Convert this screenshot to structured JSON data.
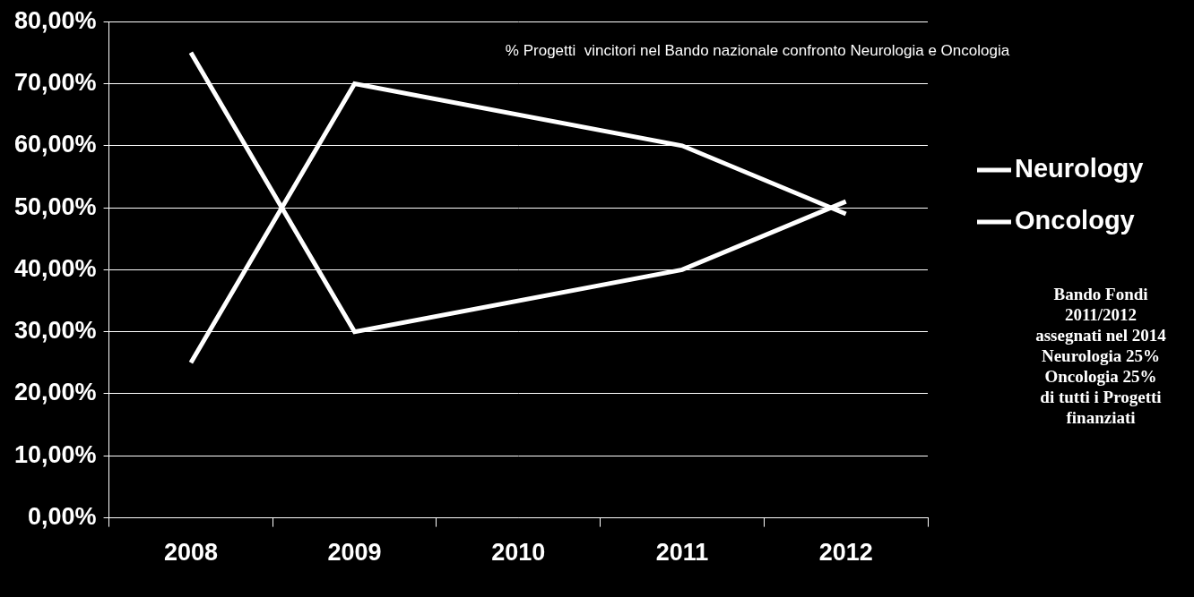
{
  "chart_data": {
    "type": "line",
    "title": "% Progetti  vincitori nel Bando nazionale confronto Neurologia e Oncologia",
    "categories": [
      "2008",
      "2009",
      "2010",
      "2011",
      "2012"
    ],
    "series": [
      {
        "name": "Neurology",
        "color": "#ffffff",
        "values": [
          75,
          30,
          null,
          40,
          51
        ]
      },
      {
        "name": "Oncology",
        "color": "#ffffff",
        "values": [
          25,
          70,
          null,
          60,
          49
        ]
      }
    ],
    "ylim": [
      0,
      80
    ],
    "yticks": [
      {
        "value": 0,
        "label": "0,00%"
      },
      {
        "value": 10,
        "label": "10,00%"
      },
      {
        "value": 20,
        "label": "20,00%"
      },
      {
        "value": 30,
        "label": "30,00%"
      },
      {
        "value": 40,
        "label": "40,00%"
      },
      {
        "value": 50,
        "label": "50,00%"
      },
      {
        "value": 60,
        "label": "60,00%"
      },
      {
        "value": 70,
        "label": "70,00%"
      },
      {
        "value": 80,
        "label": "80,00%"
      }
    ],
    "grid": true,
    "legend": "right",
    "annotation": [
      "Bando Fondi",
      "2011/2012",
      "assegnati nel 2014",
      "Neurologia 25%",
      "Oncologia 25%",
      "di tutti i Progetti",
      "finanziati"
    ]
  }
}
